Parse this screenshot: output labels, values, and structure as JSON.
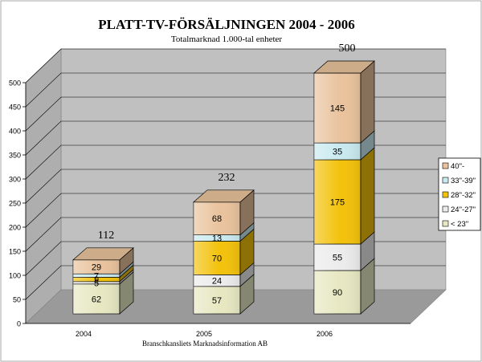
{
  "chart_data": {
    "type": "bar",
    "stacked": true,
    "style": "3d",
    "title": "PLATT-TV-FÖRSÄLJNINGEN 2004 - 2006",
    "subtitle": "Totalmarknad 1.000-tal enheter",
    "source": "Branschkansliets Marknadsinformation AB",
    "categories": [
      "2004",
      "2005",
      "2006"
    ],
    "totals": [
      112,
      232,
      500
    ],
    "ylim": [
      0,
      500
    ],
    "yticks": [
      0,
      50,
      100,
      150,
      200,
      250,
      300,
      350,
      400,
      450,
      500
    ],
    "grid": true,
    "legend_position": "right",
    "series": [
      {
        "name": "< 23\"",
        "values": [
          62,
          57,
          90
        ],
        "color": "#e7e8c2"
      },
      {
        "name": "24\"-27\"",
        "values": [
          5,
          24,
          55
        ],
        "color": "#ececec"
      },
      {
        "name": "28\"-32\"",
        "values": [
          9,
          70,
          175
        ],
        "color": "#f3c20b"
      },
      {
        "name": "33\"-39\"",
        "values": [
          7,
          13,
          35
        ],
        "color": "#c9eaf0"
      },
      {
        "name": "40\"-",
        "values": [
          29,
          68,
          145
        ],
        "color": "#e9c39d"
      }
    ]
  }
}
